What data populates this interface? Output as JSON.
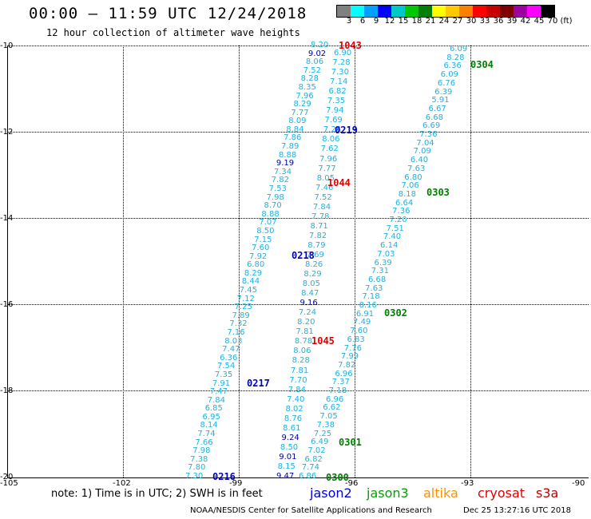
{
  "header": {
    "title": "00:00 – 11:59 UTC 12/24/2018",
    "subtitle": "12 hour collection of altimeter wave heights"
  },
  "colorbar": {
    "labels": [
      "3",
      "6",
      "9",
      "12",
      "15",
      "18",
      "21",
      "24",
      "27",
      "30",
      "33",
      "36",
      "39",
      "42",
      "45",
      "70",
      "(ft)"
    ],
    "colors": [
      "#808080",
      "#00ffff",
      "#00a0ff",
      "#0000ff",
      "#00c8c8",
      "#00c800",
      "#008000",
      "#ffff00",
      "#ffc800",
      "#ff8000",
      "#ff0000",
      "#c80000",
      "#800000",
      "#a000a0",
      "#ff00ff",
      "#000000"
    ]
  },
  "axes": {
    "y_labels": [
      "-10",
      "-12",
      "-14",
      "-16",
      "-18",
      "-20"
    ],
    "x_labels": [
      "-105",
      "-102",
      "-99",
      "-96",
      "-93",
      "-90"
    ]
  },
  "tracks": [
    {
      "color": "#1fb2e0",
      "values": [
        "8.20",
        "9.02",
        "8.06",
        "7.52",
        "8.28",
        "8.35",
        "7.96",
        "8.29",
        "7.77",
        "8.09",
        "8.84",
        "7.86",
        "7.89",
        "8.88",
        "9.19",
        "7.34",
        "7.82",
        "7.53",
        "7.98",
        "8.70",
        "8.88",
        "7.07",
        "8.50",
        "7.15",
        "7.60",
        "7.92",
        "6.80",
        "8.29",
        "8.44",
        "7.45",
        "7.12",
        "7.25",
        "7.89",
        "7.32",
        "7.16",
        "8.03",
        "7.47",
        "6.36",
        "7.54",
        "7.35",
        "7.91",
        "7.47",
        "7.84",
        "6.85",
        "6.95",
        "8.14",
        "7.74",
        "7.66",
        "7.98",
        "7.38",
        "7.80",
        "7.30"
      ]
    },
    {
      "color": "#1fb2e0",
      "values": [
        "6.90",
        "7.28",
        "7.30",
        "7.14",
        "6.82",
        "7.35",
        "7.94",
        "7.69",
        "7.28",
        "8.06",
        "7.62",
        "7.96",
        "7.77",
        "8.05",
        "7.46",
        "7.52",
        "7.84",
        "7.78",
        "8.71",
        "7.82",
        "8.79",
        "7.69",
        "8.26",
        "8.29",
        "8.05",
        "8.47",
        "9.16",
        "7.24",
        "8.20",
        "7.81",
        "8.78",
        "8.06",
        "8.28",
        "7.81",
        "7.70",
        "7.84",
        "7.40",
        "8.02",
        "8.76",
        "8.61",
        "9.24",
        "8.50",
        "9.01",
        "8.15",
        "9.47"
      ]
    },
    {
      "color": "#1fb2e0",
      "values": [
        "6.09",
        "8.28",
        "6.36",
        "6.09",
        "6.76",
        "6.39",
        "5.91",
        "6.67",
        "6.68",
        "6.69",
        "7.36",
        "7.04",
        "7.09",
        "6.40",
        "7.63",
        "6.80",
        "7.06",
        "8.18",
        "6.64",
        "7.36",
        "7.20",
        "7.51",
        "7.40",
        "6.14",
        "7.03",
        "6.39",
        "7.31",
        "6.68",
        "7.63",
        "7.18",
        "8.16",
        "6.91",
        "7.49",
        "7.60",
        "6.83",
        "7.76",
        "7.99",
        "7.82",
        "6.96",
        "7.37",
        "7.18",
        "6.96",
        "6.62",
        "7.05",
        "7.38",
        "7.25",
        "6.49",
        "7.02",
        "6.82",
        "7.74",
        "6.86"
      ]
    }
  ],
  "pass_labels": [
    {
      "text": "1043",
      "color": "#e00000"
    },
    {
      "text": "0304",
      "color": "#008000"
    },
    {
      "text": "0219",
      "color": "#0000c0"
    },
    {
      "text": "1044",
      "color": "#e00000"
    },
    {
      "text": "0303",
      "color": "#008000"
    },
    {
      "text": "0218",
      "color": "#0000c0"
    },
    {
      "text": "0302",
      "color": "#008000"
    },
    {
      "text": "1045",
      "color": "#e00000"
    },
    {
      "text": "0217",
      "color": "#0000c0"
    },
    {
      "text": "0301",
      "color": "#008000"
    },
    {
      "text": "0216",
      "color": "#0000c0"
    },
    {
      "text": "0300",
      "color": "#008000"
    }
  ],
  "footer": {
    "note": "note: 1) Time is in UTC; 2) SWH is in feet",
    "legend": [
      {
        "name": "jason2",
        "color": "#0000e0"
      },
      {
        "name": "jason3",
        "color": "#00a000"
      },
      {
        "name": "altika",
        "color": "#ff9000"
      },
      {
        "name": "cryosat",
        "color": "#e00000"
      },
      {
        "name": "s3a",
        "color": "#c00000"
      }
    ],
    "credit": "NOAA/NESDIS Center for Satellite Applications and Research",
    "timestamp": "Dec 25 13:27:16 UTC 2018"
  }
}
